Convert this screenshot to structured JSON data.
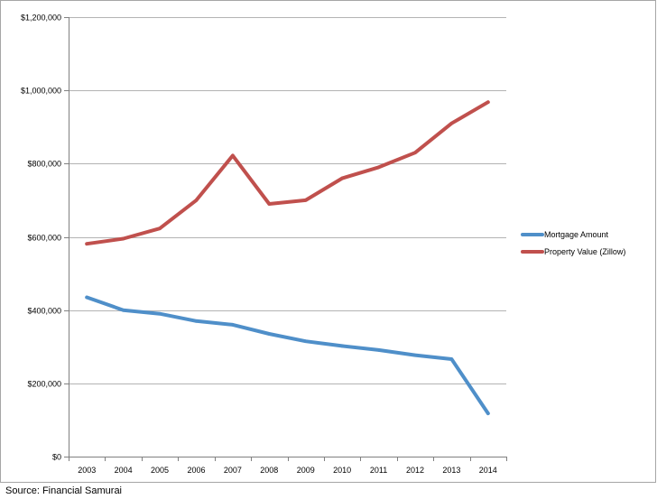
{
  "chart_data": {
    "type": "line",
    "title": "",
    "xlabel": "",
    "ylabel": "",
    "categories": [
      "2003",
      "2004",
      "2005",
      "2006",
      "2007",
      "2008",
      "2009",
      "2010",
      "2011",
      "2012",
      "2013",
      "2014"
    ],
    "y_ticks": [
      "$0",
      "$200,000",
      "$400,000",
      "$600,000",
      "$800,000",
      "$1,000,000",
      "$1,200,000"
    ],
    "ylim": [
      0,
      1200000
    ],
    "grid": true,
    "legend_position": "right",
    "series": [
      {
        "name": "Mortgage Amount",
        "color": "#4f8fc9",
        "values": [
          435000,
          400000,
          390000,
          370000,
          360000,
          335000,
          315000,
          302000,
          291000,
          277000,
          266000,
          118000
        ]
      },
      {
        "name": "Property Value (Zillow)",
        "color": "#c0504d",
        "values": [
          581000,
          595000,
          623000,
          700000,
          822000,
          690000,
          700000,
          760000,
          790000,
          830000,
          910000,
          968000
        ]
      }
    ]
  },
  "source_note": "Source: Financial Samurai"
}
